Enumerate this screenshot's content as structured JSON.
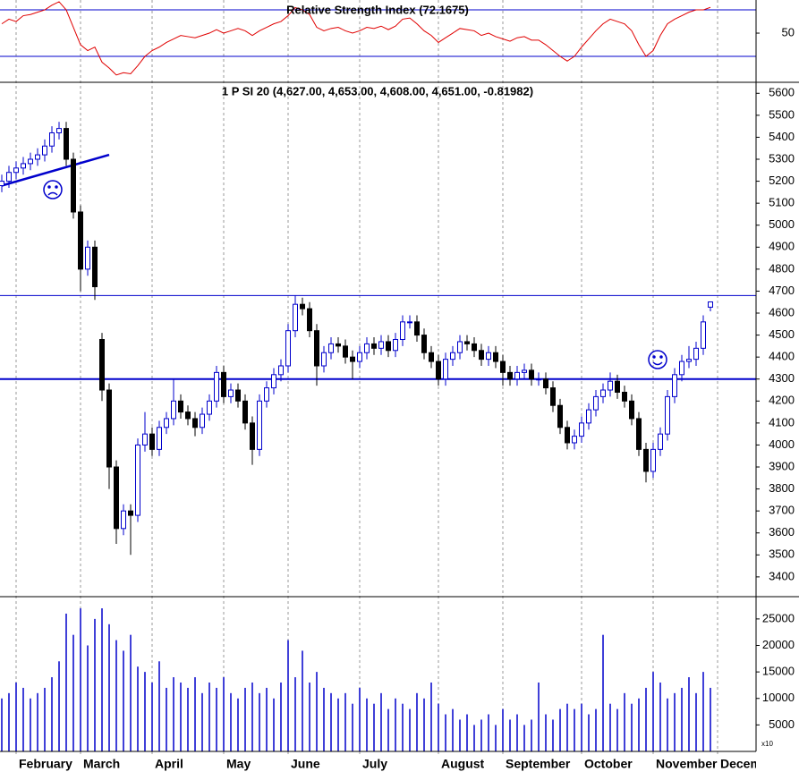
{
  "chart_data": [
    {
      "type": "line",
      "title": "Relative Strength Index (72.1675)",
      "color": "#e00000",
      "level_color": "#0000cc",
      "ylim": [
        7.7,
        78.5
      ],
      "yticks": [
        50
      ],
      "levels": [
        30,
        70
      ],
      "values": [
        58,
        62,
        60,
        65,
        66,
        68,
        70,
        74,
        77,
        70,
        55,
        40,
        35,
        38,
        25,
        20,
        14,
        16,
        15,
        22,
        30,
        35,
        38,
        42,
        45,
        48,
        47,
        46,
        48,
        50,
        53,
        50,
        52,
        54,
        52,
        48,
        52,
        55,
        58,
        60,
        65,
        72,
        70,
        66,
        55,
        52,
        54,
        55,
        52,
        50,
        52,
        55,
        54,
        56,
        53,
        56,
        62,
        63,
        58,
        52,
        48,
        42,
        46,
        50,
        54,
        53,
        52,
        48,
        50,
        47,
        45,
        43,
        46,
        47,
        44,
        44,
        40,
        35,
        30,
        26,
        30,
        38,
        45,
        52,
        58,
        62,
        60,
        58,
        52,
        40,
        30,
        35,
        48,
        58,
        62,
        65,
        68,
        70,
        70,
        72.1675,
        null
      ]
    },
    {
      "type": "candlestick",
      "title": "1 P SI 20 (4,627.00, 4,653.00, 4,608.00, 4,651.00, -0.81982)",
      "up_color": "#0000cc",
      "down_color": "#000000",
      "line_color": "#0000cc",
      "ylim": [
        3310,
        5650
      ],
      "yticks": [
        3400,
        3500,
        3600,
        3700,
        3800,
        3900,
        4000,
        4100,
        4200,
        4300,
        4400,
        4500,
        4600,
        4700,
        4800,
        4900,
        5000,
        5100,
        5200,
        5300,
        5400,
        5500,
        5600
      ],
      "hlines": [
        4680,
        4300
      ],
      "trendline": {
        "x": [
          0,
          15
        ],
        "y": [
          5180,
          5320
        ]
      },
      "open": [
        5180,
        5200,
        5240,
        5260,
        5280,
        5300,
        5320,
        5360,
        5420,
        5440,
        5300,
        5060,
        4800,
        4900,
        4480,
        4250,
        3900,
        3620,
        3700,
        3680,
        4000,
        4050,
        3980,
        4080,
        4120,
        4200,
        4150,
        4120,
        4080,
        4140,
        4200,
        4330,
        4220,
        4250,
        4200,
        4100,
        3980,
        4200,
        4260,
        4320,
        4360,
        4520,
        4640,
        4620,
        4520,
        4360,
        4420,
        4460,
        4450,
        4400,
        4380,
        4420,
        4460,
        4440,
        4470,
        4430,
        4480,
        4560,
        4560,
        4500,
        4420,
        4380,
        4300,
        4390,
        4420,
        4470,
        4460,
        4430,
        4390,
        4420,
        4380,
        4330,
        4300,
        4330,
        4340,
        4300,
        4300,
        4260,
        4180,
        4080,
        4010,
        4040,
        4100,
        4160,
        4220,
        4250,
        4290,
        4240,
        4200,
        4120,
        3980,
        3880,
        3980,
        4050,
        4220,
        4320,
        4380,
        4390,
        4440,
        4627,
        null
      ],
      "high": [
        5230,
        5270,
        5290,
        5310,
        5330,
        5350,
        5390,
        5450,
        5470,
        5470,
        5330,
        5090,
        4930,
        4930,
        4510,
        4280,
        3930,
        3730,
        3730,
        4030,
        4150,
        4080,
        4110,
        4150,
        4300,
        4230,
        4180,
        4150,
        4170,
        4230,
        4360,
        4360,
        4280,
        4280,
        4230,
        4130,
        4230,
        4290,
        4350,
        4390,
        4550,
        4680,
        4670,
        4650,
        4550,
        4450,
        4490,
        4490,
        4480,
        4430,
        4450,
        4490,
        4490,
        4500,
        4500,
        4510,
        4590,
        4590,
        4590,
        4530,
        4450,
        4410,
        4420,
        4450,
        4500,
        4500,
        4490,
        4460,
        4450,
        4450,
        4410,
        4360,
        4360,
        4370,
        4370,
        4330,
        4330,
        4290,
        4210,
        4110,
        4070,
        4130,
        4190,
        4250,
        4280,
        4330,
        4320,
        4270,
        4230,
        4150,
        4010,
        4010,
        4080,
        4250,
        4350,
        4410,
        4450,
        4470,
        4590,
        4653,
        null
      ],
      "low": [
        5150,
        5170,
        5210,
        5230,
        5250,
        5270,
        5290,
        5330,
        5390,
        5270,
        5030,
        4700,
        4770,
        4660,
        4200,
        3800,
        3550,
        3590,
        3500,
        3650,
        3970,
        3950,
        3950,
        4050,
        4090,
        4120,
        4090,
        4040,
        4050,
        4110,
        4170,
        4190,
        4190,
        4170,
        4070,
        3910,
        3950,
        4170,
        4230,
        4290,
        4330,
        4490,
        4590,
        4490,
        4270,
        4330,
        4390,
        4420,
        4370,
        4300,
        4350,
        4390,
        4410,
        4410,
        4400,
        4400,
        4450,
        4530,
        4470,
        4390,
        4350,
        4270,
        4270,
        4360,
        4390,
        4430,
        4400,
        4360,
        4360,
        4350,
        4270,
        4270,
        4270,
        4300,
        4270,
        4270,
        4230,
        4150,
        4050,
        3980,
        3980,
        4010,
        4070,
        4130,
        4190,
        4220,
        4210,
        4170,
        4090,
        3950,
        3830,
        3850,
        3950,
        4020,
        4190,
        4290,
        4350,
        4360,
        4410,
        4608,
        null
      ],
      "close": [
        5200,
        5240,
        5260,
        5280,
        5300,
        5320,
        5360,
        5420,
        5440,
        5300,
        5060,
        4800,
        4900,
        4720,
        4250,
        3900,
        3620,
        3700,
        3680,
        4000,
        4050,
        3980,
        4080,
        4120,
        4200,
        4150,
        4120,
        4080,
        4140,
        4200,
        4330,
        4220,
        4250,
        4200,
        4100,
        3980,
        4200,
        4260,
        4320,
        4360,
        4520,
        4640,
        4620,
        4520,
        4360,
        4420,
        4460,
        4450,
        4400,
        4380,
        4420,
        4460,
        4440,
        4470,
        4430,
        4480,
        4560,
        4560,
        4500,
        4420,
        4380,
        4300,
        4390,
        4420,
        4470,
        4460,
        4430,
        4390,
        4420,
        4380,
        4330,
        4300,
        4330,
        4340,
        4300,
        4300,
        4260,
        4180,
        4080,
        4010,
        4040,
        4100,
        4160,
        4220,
        4250,
        4290,
        4240,
        4200,
        4120,
        3980,
        3880,
        3980,
        4050,
        4220,
        4320,
        4380,
        4390,
        4440,
        4560,
        4651,
        null
      ]
    },
    {
      "type": "bar",
      "color": "#0000cc",
      "unit_label": "x10",
      "ylim": [
        0,
        29200
      ],
      "yticks": [
        5000,
        10000,
        15000,
        20000,
        25000
      ],
      "categories": [
        null,
        null,
        "February",
        null,
        null,
        null,
        null,
        null,
        null,
        null,
        null,
        "March",
        null,
        null,
        null,
        null,
        null,
        null,
        null,
        null,
        null,
        "April",
        null,
        null,
        null,
        null,
        null,
        null,
        null,
        null,
        null,
        "May",
        null,
        null,
        null,
        null,
        null,
        null,
        null,
        null,
        "June",
        null,
        null,
        null,
        null,
        null,
        null,
        null,
        null,
        null,
        "July",
        null,
        null,
        null,
        null,
        null,
        null,
        null,
        null,
        null,
        null,
        "August",
        null,
        null,
        null,
        null,
        null,
        null,
        null,
        null,
        "September",
        null,
        null,
        null,
        null,
        null,
        null,
        null,
        null,
        null,
        null,
        "October",
        null,
        null,
        null,
        null,
        null,
        null,
        null,
        null,
        null,
        "November",
        null,
        null,
        null,
        null,
        null,
        null,
        null,
        null,
        "December"
      ],
      "values": [
        10000,
        11000,
        13000,
        12000,
        10000,
        11000,
        12000,
        14000,
        17000,
        26000,
        22000,
        27000,
        20000,
        25000,
        27000,
        24000,
        21000,
        19000,
        22000,
        16000,
        15000,
        13000,
        17000,
        12000,
        14000,
        13000,
        12000,
        14000,
        11000,
        13000,
        12000,
        14000,
        11000,
        10000,
        12000,
        13000,
        11000,
        12000,
        10000,
        13000,
        21000,
        14000,
        19000,
        13000,
        15000,
        12000,
        11000,
        10000,
        11000,
        9000,
        12000,
        10000,
        9000,
        11000,
        8000,
        10000,
        9000,
        8000,
        11000,
        10000,
        13000,
        9000,
        7000,
        8000,
        6000,
        7000,
        5000,
        6000,
        7000,
        5000,
        8000,
        6000,
        7000,
        5000,
        6000,
        13000,
        7000,
        6000,
        8000,
        9000,
        8000,
        9000,
        7000,
        8000,
        22000,
        9000,
        8000,
        11000,
        9000,
        10000,
        12000,
        15000,
        13000,
        10000,
        11000,
        12000,
        14000,
        11000,
        15000,
        12000,
        null
      ]
    }
  ]
}
